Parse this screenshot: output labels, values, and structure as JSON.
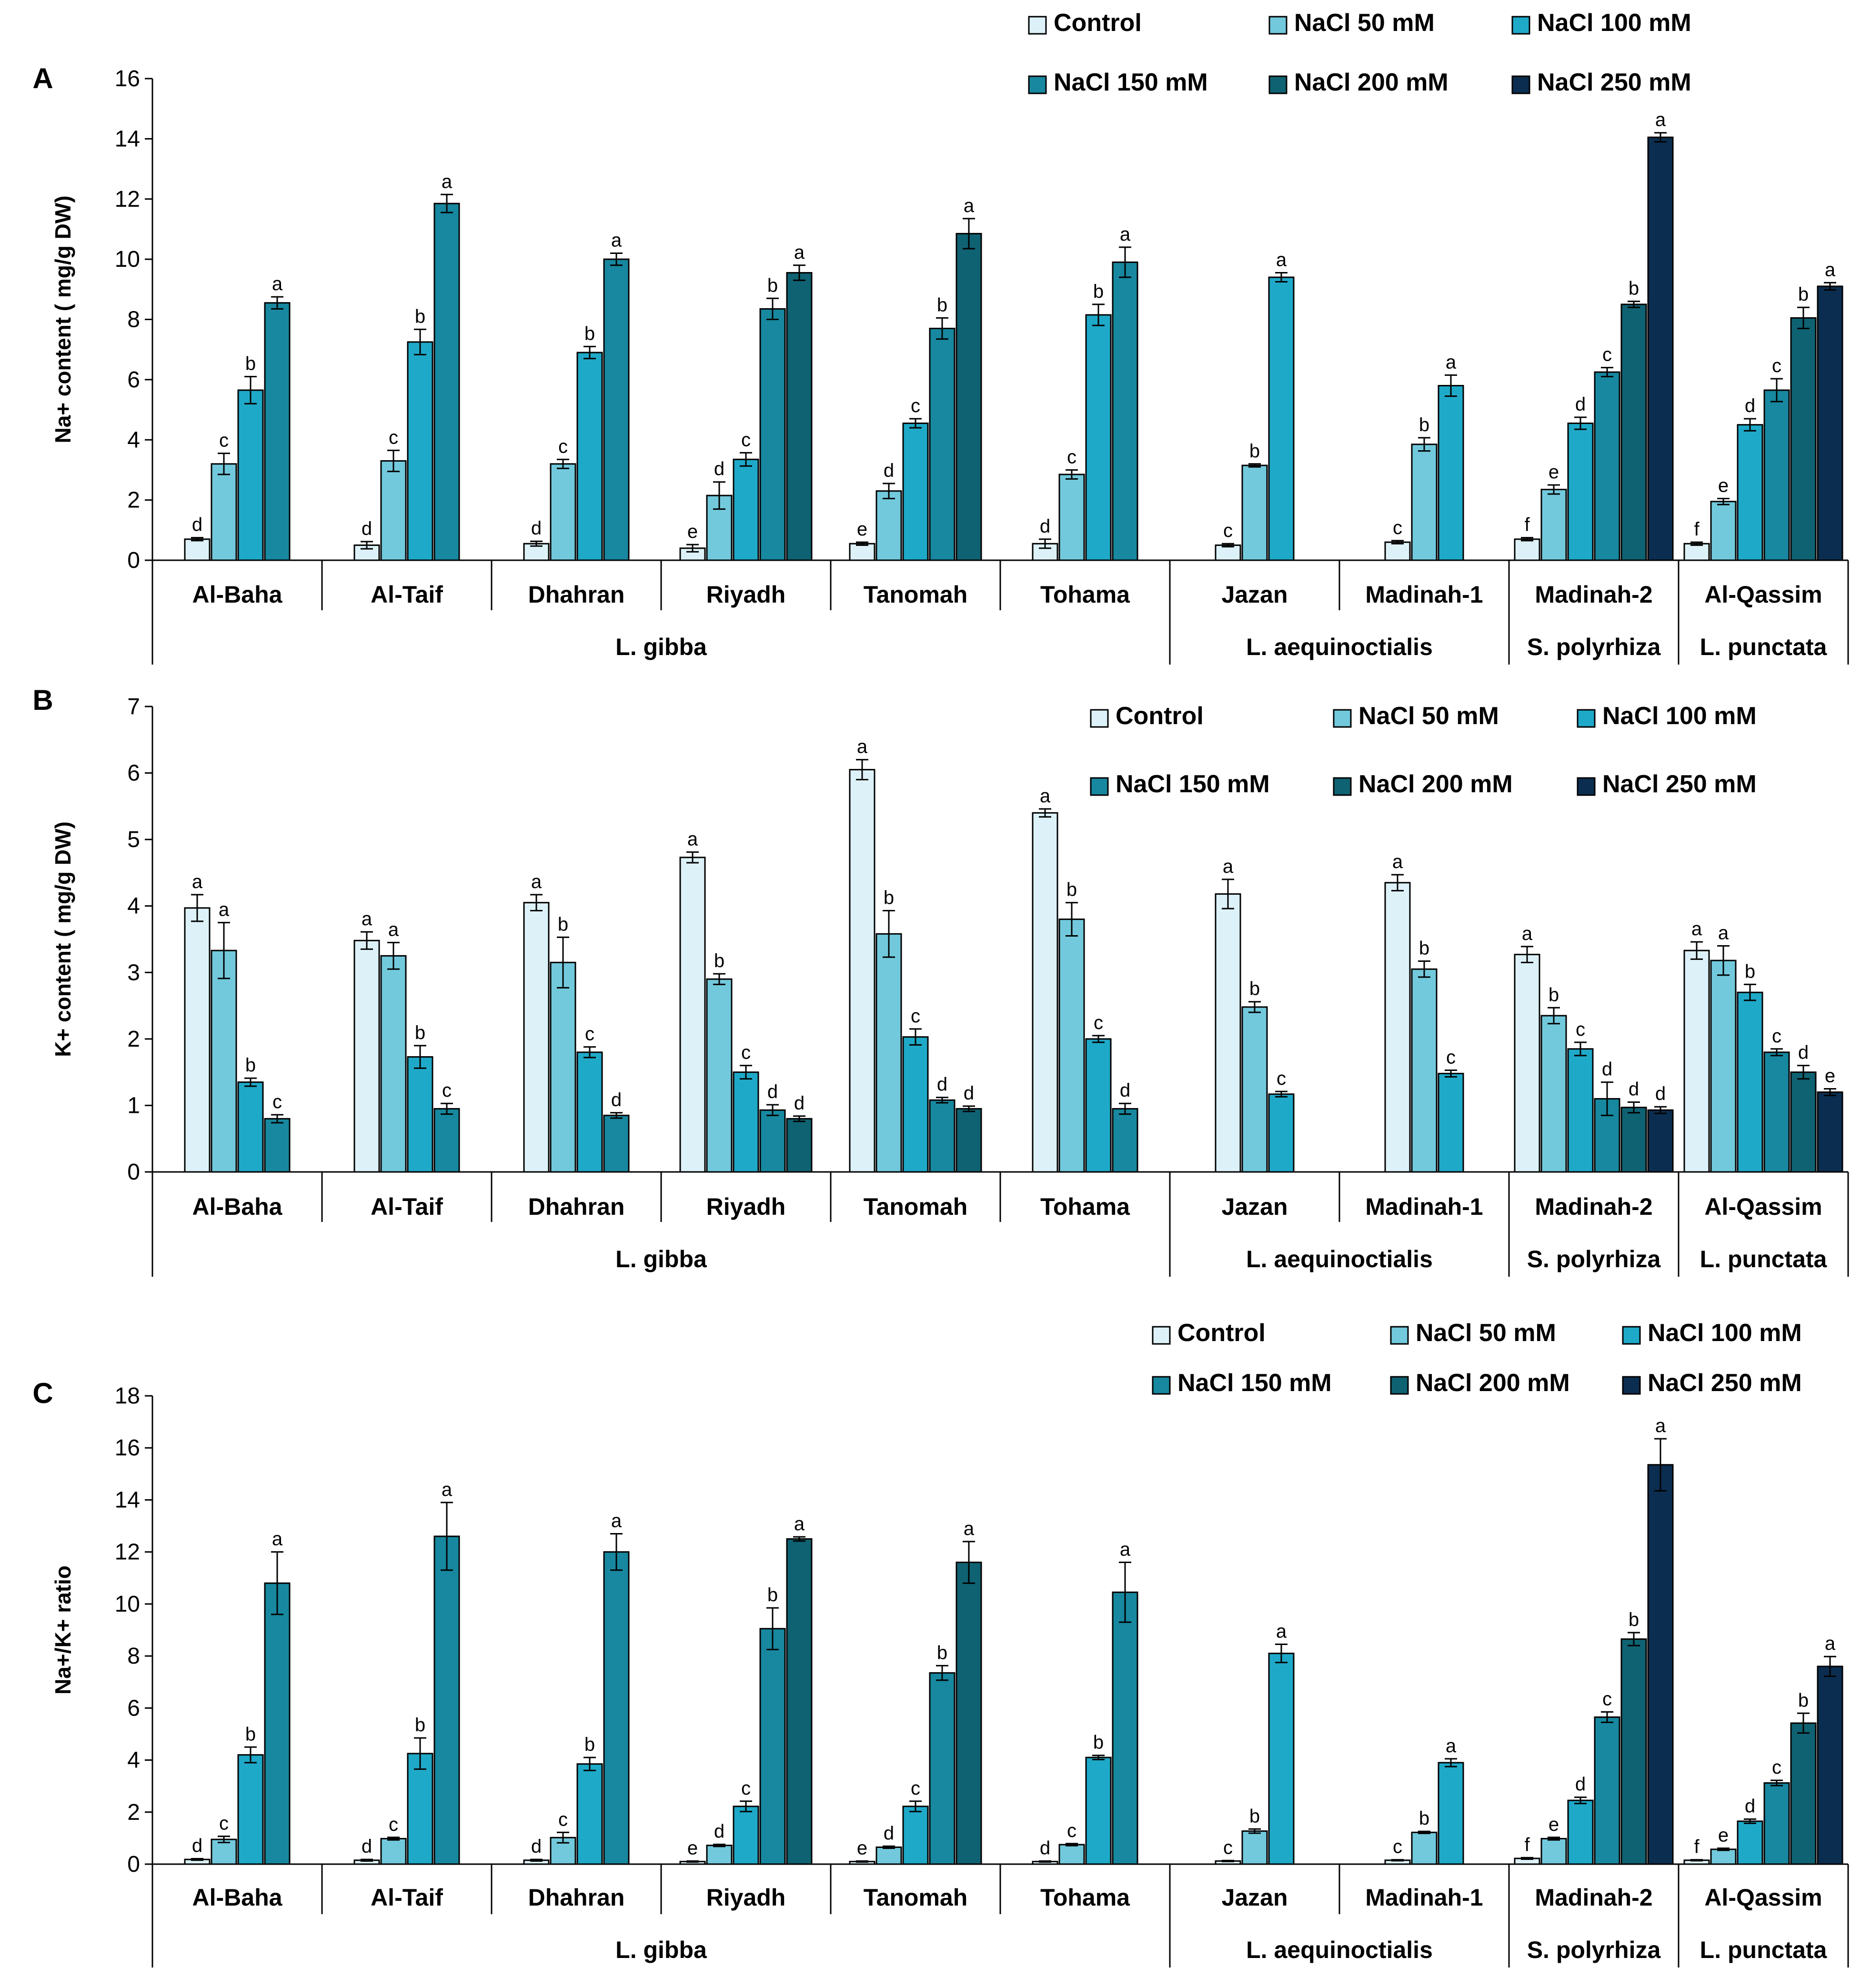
{
  "legend": [
    "Control",
    "NaCl 50 mM",
    "NaCl 100 mM",
    "NaCl 150 mM",
    "NaCl 200 mM",
    "NaCl 250 mM"
  ],
  "colors": [
    "#ddf2f8",
    "#72c9dc",
    "#1fa9c8",
    "#17889f",
    "#0f6272",
    "#0b2e50"
  ],
  "groups": [
    {
      "name": "L. gibba",
      "sites": [
        "Al-Baha",
        "Al-Taif",
        "Dhahran",
        "Riyadh",
        "Tanomah",
        "Tohama"
      ]
    },
    {
      "name": "L. aequinoctialis",
      "sites": [
        "Jazan",
        "Madinah-1"
      ]
    },
    {
      "name": "S. polyrhiza",
      "sites": [
        "Madinah-2"
      ]
    },
    {
      "name": "L. punctata",
      "sites": [
        "Al-Qassim"
      ]
    }
  ],
  "chart_data": [
    {
      "panel": "A",
      "type": "bar",
      "ylabel": "Na+ content ( mg/g DW)",
      "ylim": [
        0,
        16
      ],
      "yticks": [
        0,
        2,
        4,
        6,
        8,
        10,
        12,
        14,
        16
      ],
      "legend_position": "top-right",
      "categories": [
        "Al-Baha",
        "Al-Taif",
        "Dhahran",
        "Riyadh",
        "Tanomah",
        "Tohama",
        "Jazan",
        "Madinah-1",
        "Madinah-2",
        "Al-Qassim"
      ],
      "bars": [
        [
          [
            0,
            0.7,
            0.05,
            "d"
          ],
          [
            1,
            3.2,
            0.35,
            "c"
          ],
          [
            2,
            5.65,
            0.45,
            "b"
          ],
          [
            3,
            8.55,
            0.2,
            "a"
          ]
        ],
        [
          [
            0,
            0.5,
            0.12,
            "d"
          ],
          [
            1,
            3.3,
            0.35,
            "c"
          ],
          [
            2,
            7.25,
            0.42,
            "b"
          ],
          [
            3,
            11.85,
            0.3,
            "a"
          ]
        ],
        [
          [
            0,
            0.55,
            0.08,
            "d"
          ],
          [
            1,
            3.2,
            0.15,
            "c"
          ],
          [
            2,
            6.9,
            0.2,
            "b"
          ],
          [
            3,
            10.0,
            0.2,
            "a"
          ]
        ],
        [
          [
            0,
            0.4,
            0.12,
            "e"
          ],
          [
            1,
            2.15,
            0.45,
            "d"
          ],
          [
            2,
            3.35,
            0.22,
            "c"
          ],
          [
            3,
            8.35,
            0.35,
            "b"
          ],
          [
            4,
            9.55,
            0.25,
            "a"
          ]
        ],
        [
          [
            0,
            0.55,
            0.05,
            "e"
          ],
          [
            1,
            2.3,
            0.25,
            "d"
          ],
          [
            2,
            4.55,
            0.15,
            "c"
          ],
          [
            3,
            7.7,
            0.35,
            "b"
          ],
          [
            4,
            10.85,
            0.5,
            "a"
          ]
        ],
        [
          [
            0,
            0.55,
            0.15,
            "d"
          ],
          [
            1,
            2.85,
            0.15,
            "c"
          ],
          [
            2,
            8.15,
            0.35,
            "b"
          ],
          [
            3,
            9.9,
            0.5,
            "a"
          ]
        ],
        [
          [
            0,
            0.5,
            0.05,
            "c"
          ],
          [
            1,
            3.15,
            0.05,
            "b"
          ],
          [
            2,
            9.4,
            0.15,
            "a"
          ]
        ],
        [
          [
            0,
            0.6,
            0.05,
            "c"
          ],
          [
            1,
            3.85,
            0.22,
            "b"
          ],
          [
            2,
            5.8,
            0.35,
            "a"
          ]
        ],
        [
          [
            0,
            0.7,
            0.05,
            "f"
          ],
          [
            1,
            2.35,
            0.15,
            "e"
          ],
          [
            2,
            4.55,
            0.2,
            "d"
          ],
          [
            3,
            6.25,
            0.15,
            "c"
          ],
          [
            4,
            8.5,
            0.1,
            "b"
          ],
          [
            5,
            14.05,
            0.15,
            "a"
          ]
        ],
        [
          [
            0,
            0.55,
            0.05,
            "f"
          ],
          [
            1,
            1.95,
            0.1,
            "e"
          ],
          [
            2,
            4.5,
            0.2,
            "d"
          ],
          [
            3,
            5.65,
            0.38,
            "c"
          ],
          [
            4,
            8.05,
            0.35,
            "b"
          ],
          [
            5,
            9.1,
            0.12,
            "a"
          ]
        ]
      ]
    },
    {
      "panel": "B",
      "type": "bar",
      "ylabel": "K+ content ( mg/g DW)",
      "ylim": [
        0,
        7
      ],
      "yticks": [
        0,
        1,
        2,
        3,
        4,
        5,
        6,
        7
      ],
      "legend_position": "top-right",
      "categories": [
        "Al-Baha",
        "Al-Taif",
        "Dhahran",
        "Riyadh",
        "Tanomah",
        "Tohama",
        "Jazan",
        "Madinah-1",
        "Madinah-2",
        "Al-Qassim"
      ],
      "bars": [
        [
          [
            0,
            3.97,
            0.2,
            "a"
          ],
          [
            1,
            3.33,
            0.42,
            "a"
          ],
          [
            2,
            1.35,
            0.06,
            "b"
          ],
          [
            3,
            0.8,
            0.06,
            "c"
          ]
        ],
        [
          [
            0,
            3.48,
            0.13,
            "a"
          ],
          [
            1,
            3.25,
            0.2,
            "a"
          ],
          [
            2,
            1.73,
            0.17,
            "b"
          ],
          [
            3,
            0.95,
            0.08,
            "c"
          ]
        ],
        [
          [
            0,
            4.05,
            0.12,
            "a"
          ],
          [
            1,
            3.15,
            0.38,
            "b"
          ],
          [
            2,
            1.8,
            0.08,
            "c"
          ],
          [
            3,
            0.85,
            0.04,
            "d"
          ]
        ],
        [
          [
            0,
            4.73,
            0.08,
            "a"
          ],
          [
            1,
            2.9,
            0.08,
            "b"
          ],
          [
            2,
            1.5,
            0.1,
            "c"
          ],
          [
            3,
            0.93,
            0.08,
            "d"
          ],
          [
            4,
            0.8,
            0.04,
            "d"
          ]
        ],
        [
          [
            0,
            6.05,
            0.15,
            "a"
          ],
          [
            1,
            3.58,
            0.35,
            "b"
          ],
          [
            2,
            2.03,
            0.12,
            "c"
          ],
          [
            3,
            1.08,
            0.04,
            "d"
          ],
          [
            4,
            0.95,
            0.04,
            "d"
          ]
        ],
        [
          [
            0,
            5.4,
            0.06,
            "a"
          ],
          [
            1,
            3.8,
            0.25,
            "b"
          ],
          [
            2,
            2.0,
            0.05,
            "c"
          ],
          [
            3,
            0.95,
            0.08,
            "d"
          ]
        ],
        [
          [
            0,
            4.18,
            0.22,
            "a"
          ],
          [
            1,
            2.48,
            0.08,
            "b"
          ],
          [
            2,
            1.17,
            0.04,
            "c"
          ]
        ],
        [
          [
            0,
            4.35,
            0.12,
            "a"
          ],
          [
            1,
            3.05,
            0.12,
            "b"
          ],
          [
            2,
            1.48,
            0.05,
            "c"
          ]
        ],
        [
          [
            0,
            3.27,
            0.12,
            "a"
          ],
          [
            1,
            2.35,
            0.12,
            "b"
          ],
          [
            2,
            1.85,
            0.1,
            "c"
          ],
          [
            3,
            1.1,
            0.25,
            "d"
          ],
          [
            4,
            0.97,
            0.08,
            "d"
          ],
          [
            5,
            0.93,
            0.05,
            "d"
          ]
        ],
        [
          [
            0,
            3.33,
            0.13,
            "a"
          ],
          [
            1,
            3.18,
            0.22,
            "a"
          ],
          [
            2,
            2.7,
            0.12,
            "b"
          ],
          [
            3,
            1.8,
            0.05,
            "c"
          ],
          [
            4,
            1.5,
            0.1,
            "d"
          ],
          [
            5,
            1.2,
            0.05,
            "e"
          ]
        ]
      ]
    },
    {
      "panel": "C",
      "type": "bar",
      "ylabel": "Na+/K+ ratio",
      "ylim": [
        0,
        18
      ],
      "yticks": [
        0,
        2,
        4,
        6,
        8,
        10,
        12,
        14,
        16,
        18
      ],
      "legend_position": "top-right",
      "categories": [
        "Al-Baha",
        "Al-Taif",
        "Dhahran",
        "Riyadh",
        "Tanomah",
        "Tohama",
        "Jazan",
        "Madinah-1",
        "Madinah-2",
        "Al-Qassim"
      ],
      "bars": [
        [
          [
            0,
            0.18,
            0.03,
            "d"
          ],
          [
            1,
            0.95,
            0.12,
            "c"
          ],
          [
            2,
            4.2,
            0.3,
            "b"
          ],
          [
            3,
            10.8,
            1.2,
            "a"
          ]
        ],
        [
          [
            0,
            0.15,
            0.03,
            "d"
          ],
          [
            1,
            0.98,
            0.05,
            "c"
          ],
          [
            2,
            4.25,
            0.6,
            "b"
          ],
          [
            3,
            12.6,
            1.3,
            "a"
          ]
        ],
        [
          [
            0,
            0.15,
            0.03,
            "d"
          ],
          [
            1,
            1.02,
            0.2,
            "c"
          ],
          [
            2,
            3.85,
            0.25,
            "b"
          ],
          [
            3,
            12.0,
            0.7,
            "a"
          ]
        ],
        [
          [
            0,
            0.1,
            0.02,
            "e"
          ],
          [
            1,
            0.72,
            0.04,
            "d"
          ],
          [
            2,
            2.22,
            0.2,
            "c"
          ],
          [
            3,
            9.05,
            0.8,
            "b"
          ],
          [
            4,
            12.5,
            0.08,
            "a"
          ]
        ],
        [
          [
            0,
            0.1,
            0.02,
            "e"
          ],
          [
            1,
            0.65,
            0.04,
            "d"
          ],
          [
            2,
            2.22,
            0.2,
            "c"
          ],
          [
            3,
            7.35,
            0.28,
            "b"
          ],
          [
            4,
            11.6,
            0.8,
            "a"
          ]
        ],
        [
          [
            0,
            0.1,
            0.02,
            "d"
          ],
          [
            1,
            0.75,
            0.04,
            "c"
          ],
          [
            2,
            4.1,
            0.08,
            "b"
          ],
          [
            3,
            10.45,
            1.15,
            "a"
          ]
        ],
        [
          [
            0,
            0.12,
            0.02,
            "c"
          ],
          [
            1,
            1.27,
            0.08,
            "b"
          ],
          [
            2,
            8.1,
            0.35,
            "a"
          ]
        ],
        [
          [
            0,
            0.15,
            0.02,
            "c"
          ],
          [
            1,
            1.22,
            0.04,
            "b"
          ],
          [
            2,
            3.9,
            0.15,
            "a"
          ]
        ],
        [
          [
            0,
            0.22,
            0.03,
            "f"
          ],
          [
            1,
            0.98,
            0.05,
            "e"
          ],
          [
            2,
            2.45,
            0.12,
            "d"
          ],
          [
            3,
            5.65,
            0.2,
            "c"
          ],
          [
            4,
            8.65,
            0.25,
            "b"
          ],
          [
            5,
            15.35,
            1.0,
            "a"
          ]
        ],
        [
          [
            0,
            0.15,
            0.02,
            "f"
          ],
          [
            1,
            0.57,
            0.04,
            "e"
          ],
          [
            2,
            1.65,
            0.08,
            "d"
          ],
          [
            3,
            3.12,
            0.1,
            "c"
          ],
          [
            4,
            5.42,
            0.38,
            "b"
          ],
          [
            5,
            7.6,
            0.38,
            "a"
          ]
        ]
      ]
    }
  ]
}
